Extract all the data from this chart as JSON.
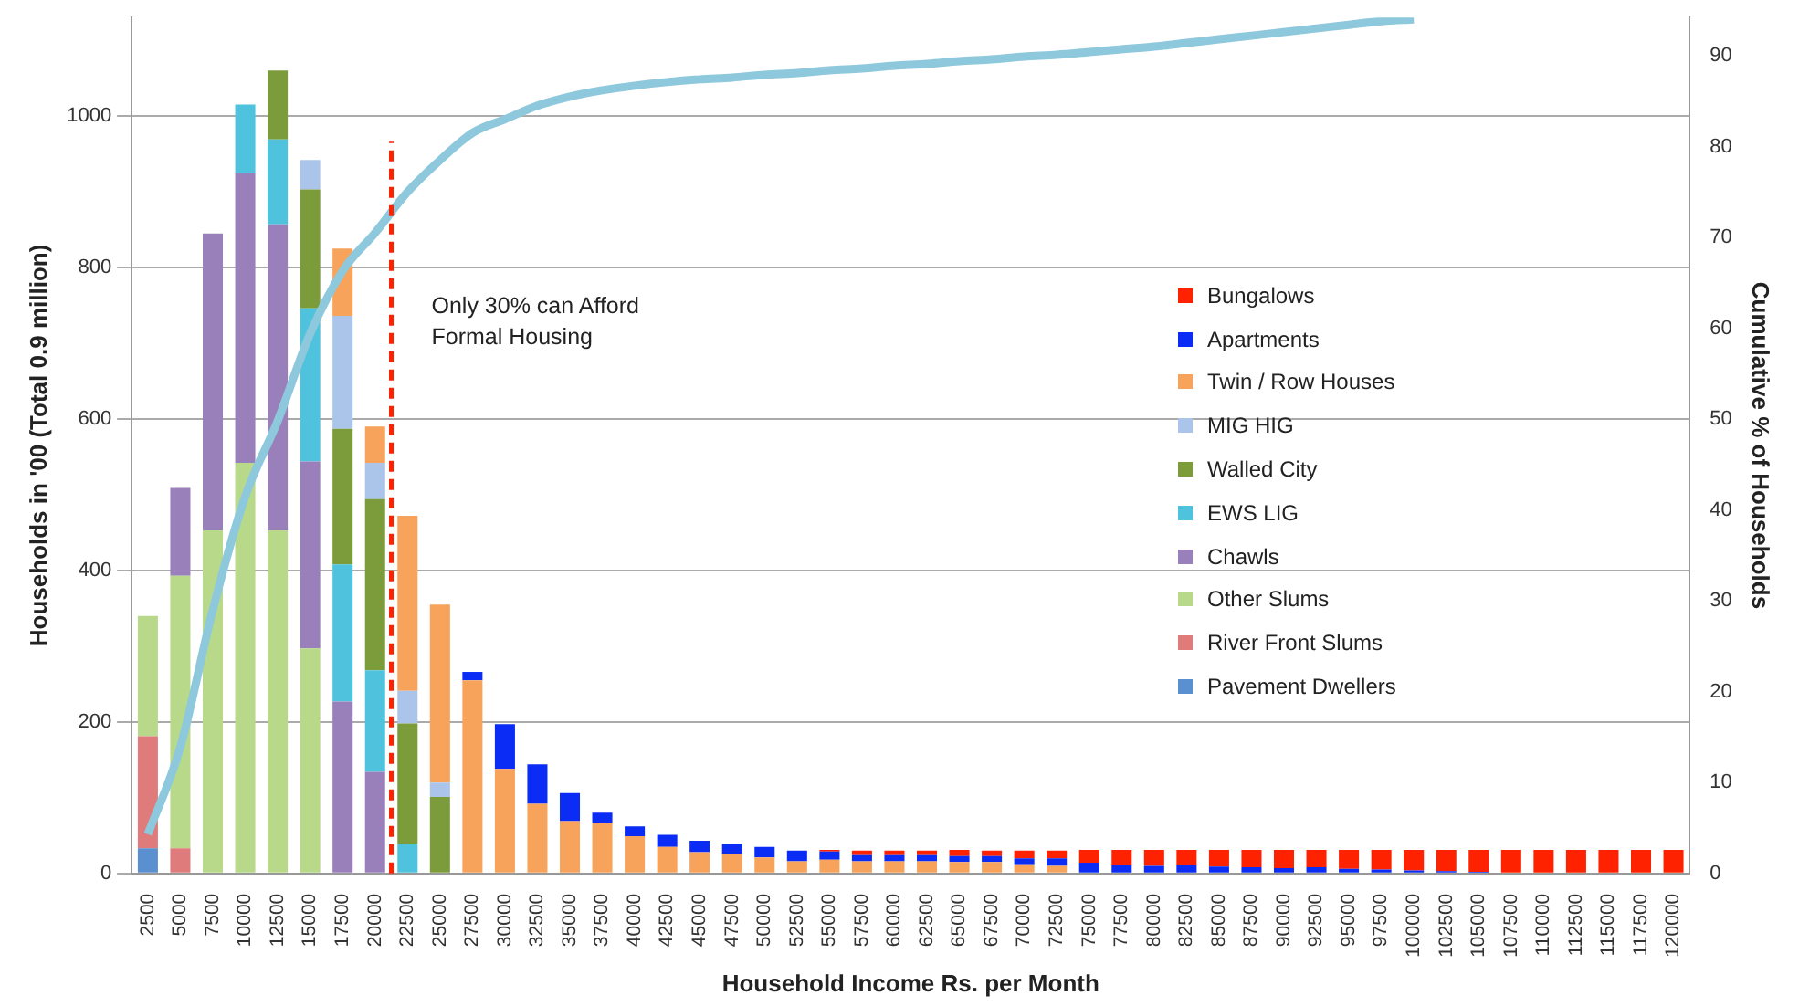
{
  "chart_data": {
    "type": "bar",
    "stacked": true,
    "categories": [
      "2500",
      "5000",
      "7500",
      "10000",
      "12500",
      "15000",
      "17500",
      "20000",
      "22500",
      "25000",
      "27500",
      "30000",
      "32500",
      "35000",
      "37500",
      "40000",
      "42500",
      "45000",
      "47500",
      "50000",
      "52500",
      "55000",
      "57500",
      "60000",
      "62500",
      "65000",
      "67500",
      "70000",
      "72500",
      "75000",
      "77500",
      "80000",
      "82500",
      "85000",
      "87500",
      "90000",
      "92500",
      "95000",
      "97500",
      "100000",
      "102500",
      "105000",
      "107500",
      "110000",
      "112500",
      "115000",
      "117500",
      "120000"
    ],
    "xlabel": "Household Income Rs. per Month",
    "ylabel": "Households in '00 (Total 0.9 million)",
    "y2label": "Cumulative % of Households",
    "ylim": [
      0,
      1130
    ],
    "yticks": [
      0,
      200,
      400,
      600,
      800,
      1000
    ],
    "y2lim": [
      0,
      94.2
    ],
    "y2ticks": [
      0,
      10,
      20,
      30,
      40,
      50,
      60,
      70,
      80,
      90
    ],
    "grid": "y",
    "legend": "right",
    "series": [
      {
        "name": "Pavement Dwellers",
        "color": "#5a8fd0",
        "values": [
          33,
          0,
          0,
          0,
          0,
          0,
          0,
          0,
          0,
          0,
          0,
          0,
          0,
          0,
          0,
          0,
          0,
          0,
          0,
          0,
          0,
          0,
          0,
          0,
          0,
          0,
          0,
          0,
          0,
          0,
          0,
          0,
          0,
          0,
          0,
          0,
          0,
          0,
          0,
          0,
          0,
          0,
          0,
          0,
          0,
          0,
          0,
          0
        ]
      },
      {
        "name": "River Front Slums",
        "color": "#e07b7b",
        "values": [
          148,
          33,
          0,
          0,
          0,
          0,
          0,
          0,
          0,
          0,
          0,
          0,
          0,
          0,
          0,
          0,
          0,
          0,
          0,
          0,
          0,
          0,
          0,
          0,
          0,
          0,
          0,
          0,
          0,
          0,
          0,
          0,
          0,
          0,
          0,
          0,
          0,
          0,
          0,
          0,
          0,
          0,
          0,
          0,
          0,
          0,
          0,
          0
        ]
      },
      {
        "name": "Other Slums",
        "color": "#b9d98a",
        "values": [
          159,
          360,
          453,
          542,
          453,
          297,
          0,
          0,
          0,
          0,
          0,
          0,
          0,
          0,
          0,
          0,
          0,
          0,
          0,
          0,
          0,
          0,
          0,
          0,
          0,
          0,
          0,
          0,
          0,
          0,
          0,
          0,
          0,
          0,
          0,
          0,
          0,
          0,
          0,
          0,
          0,
          0,
          0,
          0,
          0,
          0,
          0,
          0
        ]
      },
      {
        "name": "Chawls",
        "color": "#9a80bb",
        "values": [
          0,
          116,
          392,
          382,
          404,
          247,
          227,
          134,
          0,
          0,
          0,
          0,
          0,
          0,
          0,
          0,
          0,
          0,
          0,
          0,
          0,
          0,
          0,
          0,
          0,
          0,
          0,
          0,
          0,
          0,
          0,
          0,
          0,
          0,
          0,
          0,
          0,
          0,
          0,
          0,
          0,
          0,
          0,
          0,
          0,
          0,
          0,
          0
        ]
      },
      {
        "name": "EWS LIG",
        "color": "#4fc3dd",
        "values": [
          0,
          0,
          0,
          91,
          112,
          202,
          181,
          134,
          39,
          0,
          0,
          0,
          0,
          0,
          0,
          0,
          0,
          0,
          0,
          0,
          0,
          0,
          0,
          0,
          0,
          0,
          0,
          0,
          0,
          0,
          0,
          0,
          0,
          0,
          0,
          0,
          0,
          0,
          0,
          0,
          0,
          0,
          0,
          0,
          0,
          0,
          0,
          0
        ]
      },
      {
        "name": "Walled City",
        "color": "#7c9c3c",
        "values": [
          0,
          0,
          0,
          0,
          91,
          157,
          179,
          226,
          159,
          101,
          0,
          0,
          0,
          0,
          0,
          0,
          0,
          0,
          0,
          0,
          0,
          0,
          0,
          0,
          0,
          0,
          0,
          0,
          0,
          0,
          0,
          0,
          0,
          0,
          0,
          0,
          0,
          0,
          0,
          0,
          0,
          0,
          0,
          0,
          0,
          0,
          0,
          0
        ]
      },
      {
        "name": "MIG HIG",
        "color": "#aac4ea",
        "values": [
          0,
          0,
          0,
          0,
          0,
          39,
          149,
          48,
          43,
          19,
          0,
          0,
          0,
          0,
          0,
          0,
          0,
          0,
          0,
          0,
          0,
          0,
          0,
          0,
          0,
          0,
          0,
          0,
          0,
          0,
          0,
          0,
          0,
          0,
          0,
          0,
          0,
          0,
          0,
          0,
          0,
          0,
          0,
          0,
          0,
          0,
          0,
          0
        ]
      },
      {
        "name": "Twin / Row Houses",
        "color": "#f7a35c",
        "values": [
          0,
          0,
          0,
          0,
          0,
          0,
          89,
          48,
          231,
          235,
          255,
          138,
          92,
          69,
          66,
          49,
          35,
          28,
          26,
          21,
          16,
          18,
          16,
          16,
          16,
          15,
          15,
          12,
          10,
          0,
          0,
          0,
          0,
          0,
          0,
          0,
          0,
          0,
          0,
          0,
          0,
          0,
          0,
          0,
          0,
          0,
          0,
          0
        ]
      },
      {
        "name": "Apartments",
        "color": "#0a2cf5",
        "values": [
          0,
          0,
          0,
          0,
          0,
          0,
          0,
          0,
          0,
          0,
          11,
          59,
          52,
          37,
          14,
          13,
          16,
          15,
          13,
          14,
          14,
          11,
          8,
          8,
          8,
          8,
          8,
          8,
          10,
          14,
          11,
          10,
          11,
          9,
          8,
          7,
          8,
          6,
          5,
          4,
          3,
          2,
          0,
          0,
          0,
          0,
          0,
          0
        ]
      },
      {
        "name": "Bungalows",
        "color": "#ff2200",
        "values": [
          0,
          0,
          0,
          0,
          0,
          0,
          0,
          0,
          0,
          0,
          0,
          0,
          0,
          0,
          0,
          0,
          0,
          0,
          0,
          0,
          0,
          2,
          6,
          6,
          6,
          8,
          7,
          10,
          10,
          17,
          20,
          21,
          20,
          22,
          23,
          24,
          23,
          25,
          26,
          27,
          28,
          29,
          31,
          31,
          31,
          31,
          31,
          31
        ]
      },
      {
        "type": "line",
        "axis": "y2",
        "color": "#8ec8dc",
        "marker": "none",
        "values": [
          4.3,
          13.9,
          29,
          41.5,
          49.8,
          59.4,
          66.3,
          70.5,
          75,
          78.5,
          81.5,
          83,
          84.5,
          85.5,
          86.2,
          86.7,
          87.1,
          87.4,
          87.6,
          87.9,
          88.1,
          88.4,
          88.6,
          88.9,
          89.1,
          89.4,
          89.6,
          89.9,
          90.1,
          90.4,
          90.7,
          91,
          91.4,
          91.8,
          92.2,
          92.6,
          93,
          93.4,
          93.8,
          94,
          null,
          null,
          null,
          null,
          null,
          null,
          null,
          null
        ]
      }
    ],
    "ref_lines": [
      {
        "axis": "x",
        "value": "20000",
        "color": "#ff2200",
        "line_style": "dashed"
      }
    ],
    "annotations": [
      "Only 30% can Afford Formal Housing"
    ]
  }
}
